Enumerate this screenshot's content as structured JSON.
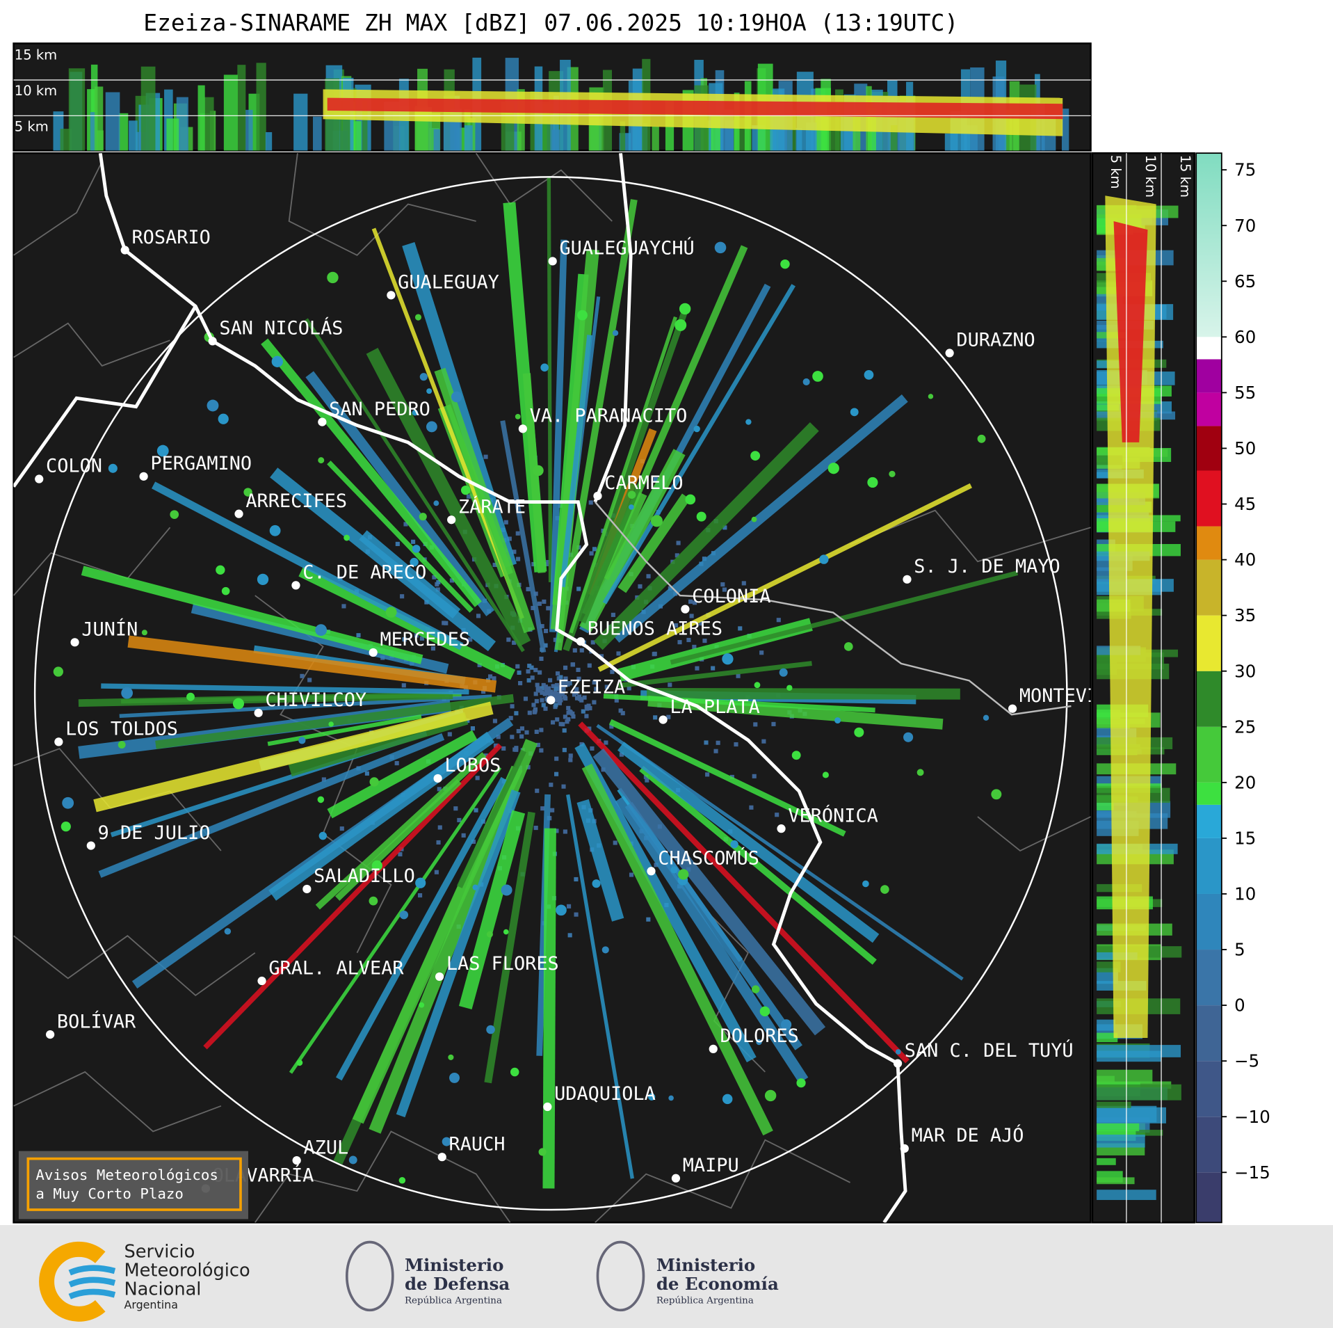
{
  "title": "Ezeiza-SINARAME ZH MAX [dBZ] 07.06.2025 10:19HOA (13:19UTC)",
  "cross_section_top": {
    "height_labels": [
      "15 km",
      "10 km",
      "5 km"
    ]
  },
  "cross_section_right": {
    "height_labels": [
      "5 km",
      "10 km",
      "15 km"
    ]
  },
  "map": {
    "places": [
      "ROSARIO",
      "GUALEGUAYCHÚ",
      "GUALEGUAY",
      "SAN NICOLÁS",
      "DURAZNO",
      "SAN PEDRO",
      "VA. PARANACITO",
      "COLON",
      "PERGAMINO",
      "CARMELO",
      "ARRECIFES",
      "ZÁRATE",
      "C. DE ARECO",
      "S. J. DE MAYO",
      "COLONIA",
      "BUENOS AIRES",
      "JUNÍN",
      "MERCEDES",
      "EZEIZA",
      "MONTEVIDEO",
      "CHIVILCOY",
      "LA PLATA",
      "LOS TOLDOS",
      "LOBOS",
      "VERÓNICA",
      "9 DE JULIO",
      "CHASCOMÚS",
      "SALADILLO",
      "GRAL. ALVEAR",
      "LAS FLORES",
      "BOLÍVAR",
      "DOLORES",
      "SAN C. DEL TUYÚ",
      "UDAQUIOLA",
      "MAR DE AJÓ",
      "AZUL",
      "RAUCH",
      "OLAVARRÍA",
      "MAIPU"
    ]
  },
  "colorbar": {
    "lim": [
      -19.5,
      76.5
    ],
    "ticks": [
      75,
      70,
      65,
      60,
      55,
      50,
      45,
      40,
      35,
      30,
      25,
      20,
      15,
      10,
      5,
      0,
      {
        "value": -5,
        "label": "−5"
      },
      {
        "value": -10,
        "label": "−10"
      },
      {
        "value": -15,
        "label": "−15"
      }
    ]
  },
  "notice": [
    "Avisos Meteorológicos",
    "a Muy Corto Plazo"
  ],
  "logos": {
    "smn": [
      "Servicio",
      "Meteorológico",
      "Nacional",
      "Argentina"
    ],
    "defensa": [
      "Ministerio",
      "de Defensa",
      "República Argentina"
    ],
    "economia": [
      "Ministerio",
      "de Economía",
      "República Argentina"
    ]
  }
}
